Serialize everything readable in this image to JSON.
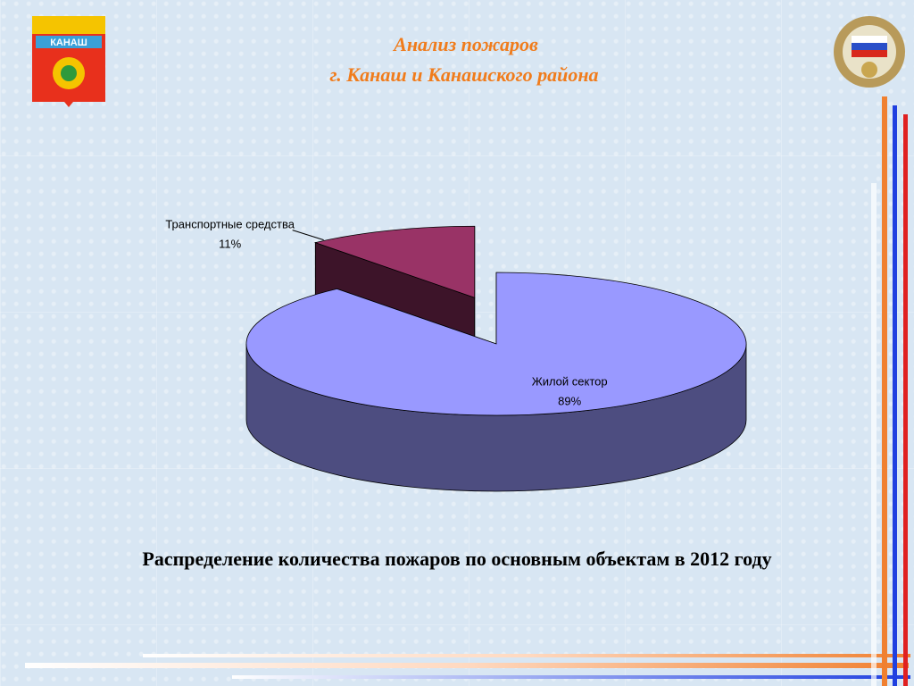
{
  "header": {
    "title": "Анализ пожаров",
    "subtitle": "г. Канаш и Канашского района",
    "emblem_text": "КАНАШ"
  },
  "chart_data": {
    "type": "pie",
    "categories": [
      "Жилой сектор",
      "Транспортные средства"
    ],
    "values": [
      89,
      11
    ],
    "value_labels": [
      "89%",
      "11%"
    ],
    "colors": [
      "#9999ff",
      "#993366"
    ],
    "explode": [
      false,
      true
    ]
  },
  "caption": "Распределение количества пожаров по основным объектам в 2012 году"
}
